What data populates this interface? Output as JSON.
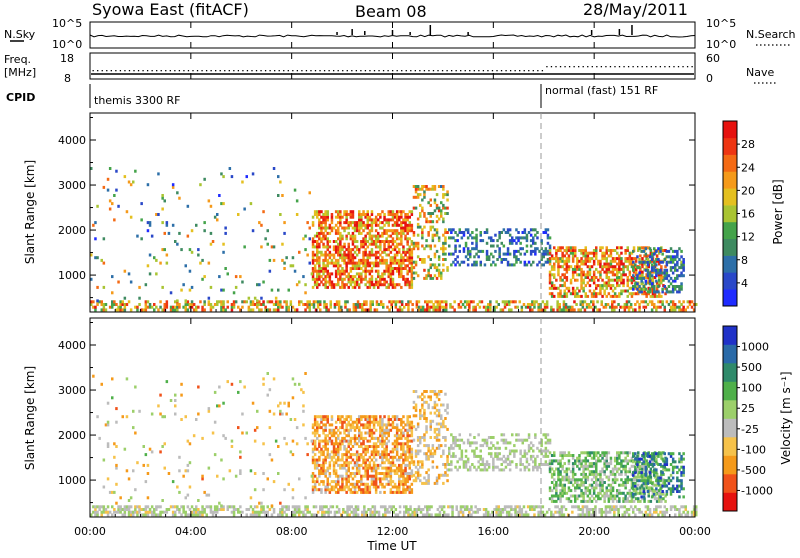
{
  "header": {
    "station": "Syowa East (fitACF)",
    "beam": "Beam 08",
    "date": "28/May/2011"
  },
  "noise_panel": {
    "left_label": "N.Sky",
    "left_ticks": [
      "10^5",
      "10^0"
    ],
    "right_label": "N.Search",
    "right_ticks": [
      "10^5",
      "10^0"
    ]
  },
  "freq_panel": {
    "left_label_1": "Freq.",
    "left_label_2": "[MHz]",
    "left_ticks": [
      "18",
      "8"
    ],
    "right_label": "Nave",
    "right_ticks": [
      "60",
      "0"
    ]
  },
  "cpid_panel": {
    "label": "CPID",
    "modes": [
      {
        "name": "themis 3300 RF",
        "start_hour": 0
      },
      {
        "name": "normal (fast) 151 RF",
        "start_hour": 18
      }
    ]
  },
  "colors": {
    "power": [
      "#1f2bff",
      "#2a48c8",
      "#2d6fa8",
      "#3e8a60",
      "#44a34a",
      "#a9c432",
      "#e4c020",
      "#f59a1a",
      "#f46a14",
      "#ee3512",
      "#e6120f"
    ],
    "velocity": [
      "#e6120f",
      "#f0521a",
      "#f59a1a",
      "#f6c24a",
      "#bcbcbc",
      "#9ccf6a",
      "#4fb04a",
      "#2f8a6a",
      "#2a6aa8",
      "#2032c8"
    ]
  },
  "chart_data": [
    {
      "type": "heatmap",
      "name": "power",
      "xlabel": "",
      "ylabel": "Slant Range [km]",
      "xlim": [
        0,
        24
      ],
      "ylim": [
        180,
        4600
      ],
      "yticks": [
        1000,
        2000,
        3000,
        4000
      ],
      "xticks": [
        0,
        4,
        8,
        12,
        16,
        20,
        24
      ],
      "xtick_labels": [
        "00:00",
        "04:00",
        "08:00",
        "12:00",
        "16:00",
        "20:00",
        "00:00"
      ],
      "colorbar_label": "Power [dB]",
      "colorbar_ticks": [
        "28",
        "24",
        "20",
        "16",
        "12",
        "8",
        "4"
      ],
      "colorbar_range": [
        0,
        30
      ],
      "regions": [
        {
          "t0": 0,
          "t1": 24,
          "r0": 200,
          "r1": 420,
          "v0": 10,
          "v1": 28,
          "density": 0.55
        },
        {
          "t0": 8.8,
          "t1": 12.8,
          "r0": 700,
          "r1": 2400,
          "v0": 14,
          "v1": 30,
          "density": 0.6
        },
        {
          "t0": 12.8,
          "t1": 14.2,
          "r0": 900,
          "r1": 3000,
          "v0": 8,
          "v1": 26,
          "density": 0.35
        },
        {
          "t0": 14.2,
          "t1": 18.2,
          "r0": 1200,
          "r1": 2000,
          "v0": 2,
          "v1": 12,
          "density": 0.35
        },
        {
          "t0": 18.2,
          "t1": 22.8,
          "r0": 500,
          "r1": 1600,
          "v0": 12,
          "v1": 30,
          "density": 0.55
        },
        {
          "t0": 21.5,
          "t1": 23.5,
          "r0": 600,
          "r1": 1600,
          "v0": 2,
          "v1": 14,
          "density": 0.45
        },
        {
          "t0": 0,
          "t1": 8.8,
          "r0": 400,
          "r1": 3400,
          "v0": 2,
          "v1": 24,
          "density": 0.04
        }
      ]
    },
    {
      "type": "heatmap",
      "name": "velocity",
      "xlabel": "Time UT",
      "ylabel": "Slant Range [km]",
      "xlim": [
        0,
        24
      ],
      "ylim": [
        180,
        4600
      ],
      "yticks": [
        1000,
        2000,
        3000,
        4000
      ],
      "xticks": [
        0,
        4,
        8,
        12,
        16,
        20,
        24
      ],
      "xtick_labels": [
        "00:00",
        "04:00",
        "08:00",
        "12:00",
        "16:00",
        "20:00",
        "00:00"
      ],
      "colorbar_label": "Velocity [m s⁻¹]",
      "colorbar_ticks": [
        "1000",
        "500",
        "100",
        "25",
        "-25",
        "-100",
        "-500",
        "-1000"
      ],
      "colorbar_range": [
        -1250,
        1250
      ],
      "regions": [
        {
          "t0": 0,
          "t1": 24,
          "r0": 200,
          "r1": 420,
          "v0": -300,
          "v1": 200,
          "density": 0.55
        },
        {
          "t0": 8.8,
          "t1": 12.8,
          "r0": 700,
          "r1": 2400,
          "v0": -900,
          "v1": -150,
          "density": 0.6
        },
        {
          "t0": 12.8,
          "t1": 14.2,
          "r0": 900,
          "r1": 3000,
          "v0": -700,
          "v1": 0,
          "density": 0.35
        },
        {
          "t0": 14.2,
          "t1": 18.2,
          "r0": 1200,
          "r1": 2000,
          "v0": -20,
          "v1": 20,
          "density": 0.35
        },
        {
          "t0": 18.2,
          "t1": 22.8,
          "r0": 500,
          "r1": 1600,
          "v0": -200,
          "v1": 600,
          "density": 0.55
        },
        {
          "t0": 21.5,
          "t1": 23.5,
          "r0": 600,
          "r1": 1600,
          "v0": 200,
          "v1": 1100,
          "density": 0.45
        },
        {
          "t0": 0,
          "t1": 8.8,
          "r0": 400,
          "r1": 3400,
          "v0": -800,
          "v1": 300,
          "density": 0.04
        }
      ]
    }
  ]
}
